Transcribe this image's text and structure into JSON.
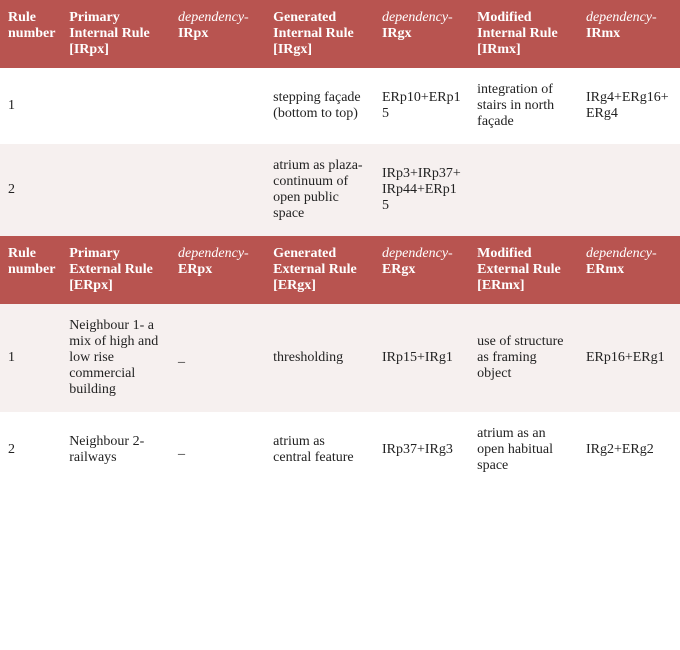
{
  "colors": {
    "header_bg": "#b85450",
    "header_text": "#ffffff",
    "row_alt_bg": "#f6f0ef",
    "row_bg": "#ffffff",
    "body_text": "#222222"
  },
  "typography": {
    "font_family": "Georgia, Times New Roman, serif",
    "header_fontsize_pt": 11,
    "body_fontsize_pt": 11,
    "header_weight": "bold"
  },
  "section1": {
    "type": "table",
    "columns": [
      {
        "label": "Rule number",
        "bold": true
      },
      {
        "label": "Primary Internal Rule [IRpx]",
        "bold": true
      },
      {
        "prefix": "dependency-",
        "suffix": "IRpx",
        "italic_prefix": true
      },
      {
        "label": "Generated Internal Rule [IRgx]",
        "bold": true
      },
      {
        "prefix": "dependency-",
        "suffix": "IRgx",
        "italic_prefix": true
      },
      {
        "label": "Modified Internal Rule [IRmx]",
        "bold": true
      },
      {
        "prefix": "dependency-",
        "suffix": "IRmx",
        "italic_prefix": true
      }
    ],
    "rows": [
      [
        "1",
        "",
        "",
        "stepping façade (bottom to top)",
        "ERp10+ERp15",
        "integration of stairs in north façade",
        "IRg4+ERg16+ERg4"
      ],
      [
        "2",
        "",
        "",
        "atrium as plaza-continuum of open public space",
        "IRp3+IRp37+IRp44+ERp15",
        "",
        ""
      ]
    ]
  },
  "section2": {
    "type": "table",
    "columns": [
      {
        "label": "Rule number",
        "bold": true
      },
      {
        "label": "Primary External Rule [ERpx]",
        "bold": true
      },
      {
        "prefix": "dependency-",
        "suffix": "ERpx",
        "italic_prefix": true
      },
      {
        "label": "Generated External Rule [ERgx]",
        "bold": true
      },
      {
        "prefix": "dependency-",
        "suffix": "ERgx",
        "italic_prefix": true
      },
      {
        "label": "Modified External Rule [ERmx]",
        "bold": true
      },
      {
        "prefix": "dependency-",
        "suffix": "ERmx",
        "italic_prefix": true
      }
    ],
    "rows": [
      [
        "1",
        "Neighbour 1- a mix of high and low rise commercial building",
        "_",
        "thresholding",
        "IRp15+IRg1",
        "use of structure as framing object",
        "ERp16+ERg1"
      ],
      [
        "2",
        "Neighbour 2- railways",
        "_",
        "atrium as central feature",
        "IRp37+IRg3",
        "atrium as an open habitual space",
        "IRg2+ERg2"
      ]
    ]
  }
}
